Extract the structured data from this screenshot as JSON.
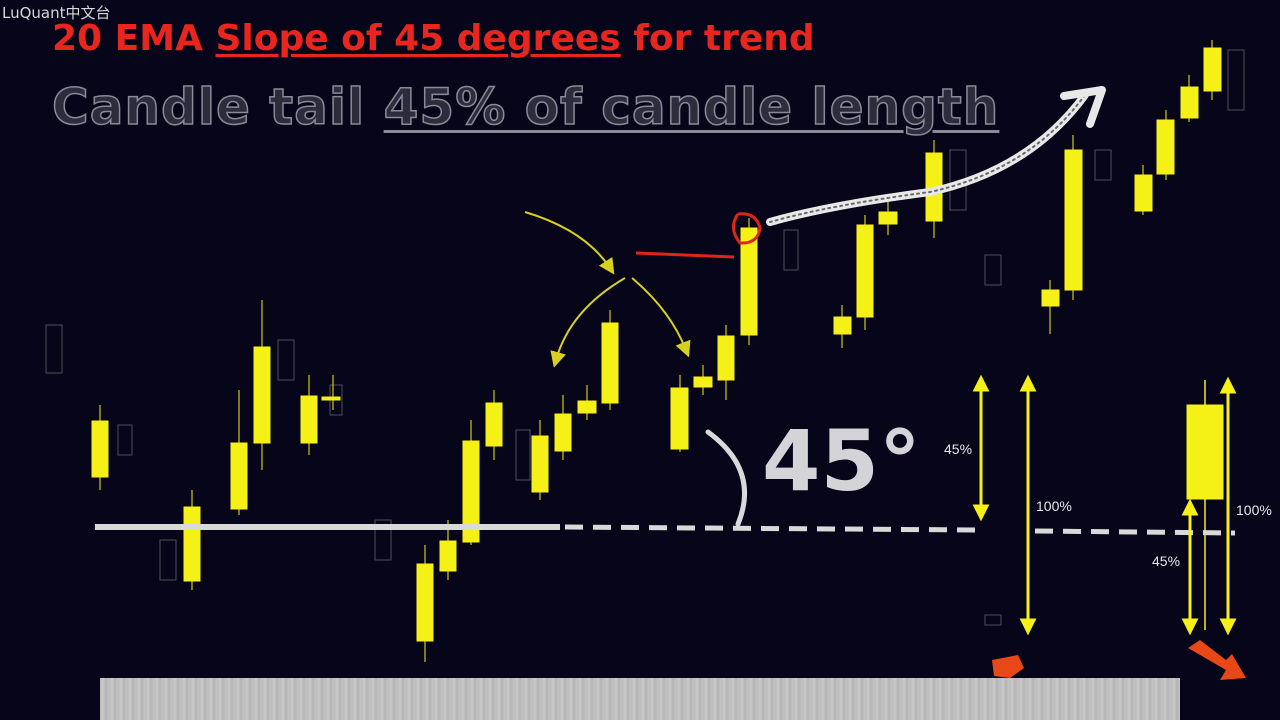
{
  "watermark": "LuQuant中文台",
  "title_line1": {
    "part1": "20 EMA ",
    "part2_underlined": "Slope of 45 degrees",
    "part3": " for trend"
  },
  "title_line2": {
    "part1": "Candle tail ",
    "part2_underlined": "45% of candle length"
  },
  "angle_label": "45°",
  "labels": {
    "left_45": "45%",
    "left_100": "100%",
    "right_100": "100%",
    "right_45": "45%"
  },
  "colors": {
    "background": "#06051a",
    "candle": "#f5f016",
    "title_red": "#e8261e",
    "ema_line": "#d9d9d9",
    "annotation_red": "#e02418",
    "arrow_yellow": "#d8d020",
    "arrow_orange": "#e84818"
  },
  "icons": {
    "trend_arrow": "curved-up-right-arrow",
    "pointer_arrows": "yellow-curved-arrows",
    "highlight_circle": "red-circle",
    "bottom_arrows": "orange-arrows"
  }
}
